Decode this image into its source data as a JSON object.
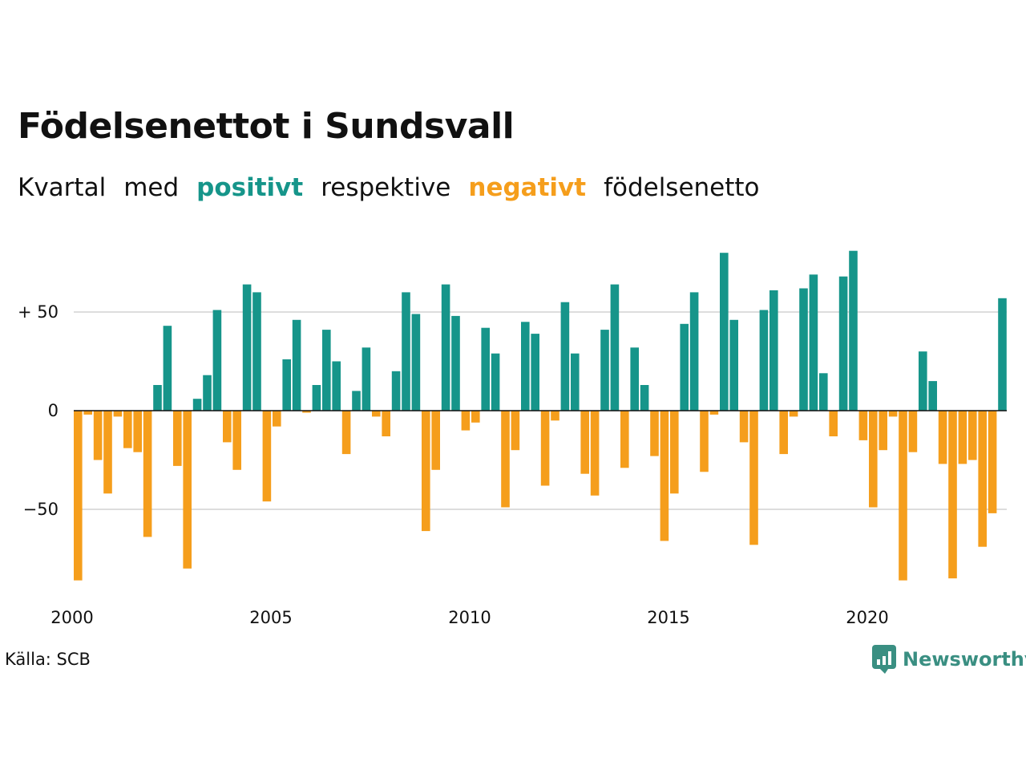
{
  "title": "Födelsenettot i Sundsvall",
  "subtitle": {
    "w1": "Kvartal",
    "w2": "med",
    "positive": "positivt",
    "w3": "respektive",
    "negative": "negativt",
    "w4": "födelsenetto"
  },
  "colors": {
    "positive": "#16958a",
    "negative": "#f59e1c",
    "grid": "#dddddd",
    "axis": "#111111"
  },
  "source": "Källa: SCB",
  "brand": {
    "name": "Newsworthy",
    "icon": "newsworthy-logo-icon"
  },
  "chart_data": {
    "type": "bar",
    "x_start": "2000 Q1",
    "frequency": "quarterly",
    "x_ticks": [
      2000,
      2005,
      2010,
      2015,
      2020
    ],
    "y_ticks": [
      {
        "value": 50,
        "label": "+ 50"
      },
      {
        "value": 0,
        "label": "0"
      },
      {
        "value": -50,
        "label": "−50"
      }
    ],
    "ylim": [
      -90,
      85
    ],
    "grid": true,
    "values": [
      -86,
      -2,
      -25,
      -42,
      -3,
      -19,
      -21,
      -64,
      13,
      43,
      -28,
      -80,
      6,
      18,
      51,
      -16,
      -30,
      64,
      60,
      -46,
      -8,
      26,
      46,
      -1,
      13,
      41,
      25,
      -22,
      10,
      32,
      -3,
      -13,
      20,
      60,
      49,
      -61,
      -30,
      64,
      48,
      -10,
      -6,
      42,
      29,
      -49,
      -20,
      45,
      39,
      -38,
      -5,
      55,
      29,
      -32,
      -43,
      41,
      64,
      -29,
      32,
      13,
      -23,
      -66,
      -42,
      44,
      60,
      -31,
      -2,
      80,
      46,
      -16,
      -68,
      51,
      61,
      -22,
      -3,
      62,
      69,
      19,
      -13,
      68,
      81,
      -15,
      -49,
      -20,
      -3,
      -86,
      -21,
      30,
      15,
      -27,
      -85,
      -27,
      -25,
      -69,
      -52,
      57
    ]
  }
}
